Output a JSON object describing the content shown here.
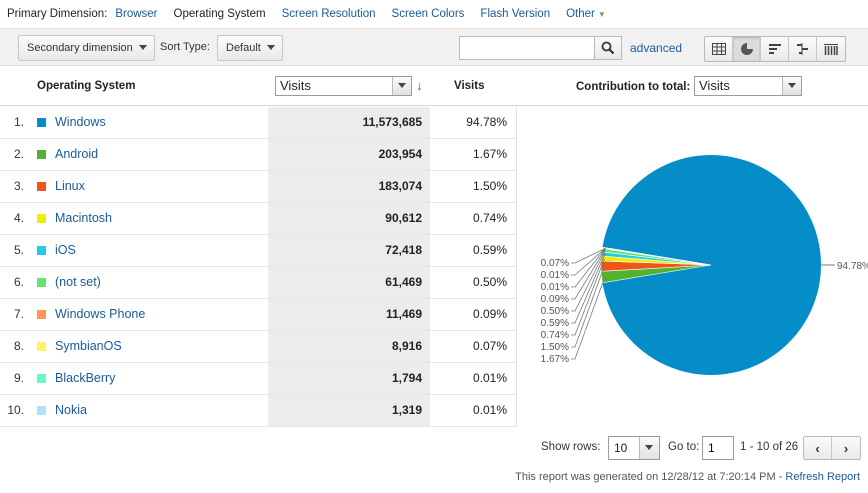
{
  "primary_dimension": {
    "label": "Primary Dimension:",
    "options": [
      "Browser",
      "Operating System",
      "Screen Resolution",
      "Screen Colors",
      "Flash Version",
      "Other"
    ],
    "active": "Operating System"
  },
  "toolbar": {
    "secondary_dimension_label": "Secondary dimension",
    "sort_type_label": "Sort Type:",
    "sort_type_value": "Default",
    "search_value": "",
    "search_icon": "search-icon",
    "advanced_label": "advanced",
    "view_icons": [
      "table-view-icon",
      "pie-view-icon",
      "performance-view-icon",
      "comparison-view-icon",
      "pivot-view-icon"
    ],
    "active_view": "pie-view-icon"
  },
  "table": {
    "dimension_header": "Operating System",
    "metric_select": "Visits",
    "sort_icon": "sort-down-arrow-icon",
    "metric_header": "Visits",
    "contribution_label": "Contribution to total:",
    "contribution_select": "Visits",
    "rows": [
      {
        "index": "1.",
        "name": "Windows",
        "visits": "11,573,685",
        "pct": "94.78%",
        "color": "#058dc7"
      },
      {
        "index": "2.",
        "name": "Android",
        "visits": "203,954",
        "pct": "1.67%",
        "color": "#50b432"
      },
      {
        "index": "3.",
        "name": "Linux",
        "visits": "183,074",
        "pct": "1.50%",
        "color": "#ed561b"
      },
      {
        "index": "4.",
        "name": "Macintosh",
        "visits": "90,612",
        "pct": "0.74%",
        "color": "#edef00"
      },
      {
        "index": "5.",
        "name": "iOS",
        "visits": "72,418",
        "pct": "0.59%",
        "color": "#24cbe5"
      },
      {
        "index": "6.",
        "name": "(not set)",
        "visits": "61,469",
        "pct": "0.50%",
        "color": "#64e572"
      },
      {
        "index": "7.",
        "name": "Windows Phone",
        "visits": "11,469",
        "pct": "0.09%",
        "color": "#ff9655"
      },
      {
        "index": "8.",
        "name": "SymbianOS",
        "visits": "8,916",
        "pct": "0.07%",
        "color": "#fff263"
      },
      {
        "index": "9.",
        "name": "BlackBerry",
        "visits": "1,794",
        "pct": "0.01%",
        "color": "#6af9c4"
      },
      {
        "index": "10.",
        "name": "Nokia",
        "visits": "1,319",
        "pct": "0.01%",
        "color": "#b2deff"
      }
    ]
  },
  "chart_data": {
    "type": "pie",
    "categories": [
      "Windows",
      "Android",
      "Linux",
      "Macintosh",
      "iOS",
      "(not set)",
      "Windows Phone",
      "SymbianOS",
      "BlackBerry",
      "Nokia"
    ],
    "values": [
      94.78,
      1.67,
      1.5,
      0.74,
      0.59,
      0.5,
      0.09,
      0.07,
      0.01,
      0.01
    ],
    "labels": [
      "94.78%",
      "0.07%",
      "0.01%",
      "0.01%",
      "0.09%",
      "0.50%",
      "0.59%",
      "0.74%",
      "1.50%",
      "1.67%"
    ],
    "colors": [
      "#058dc7",
      "#50b432",
      "#ed561b",
      "#edef00",
      "#24cbe5",
      "#64e572",
      "#ff9655",
      "#fff263",
      "#6af9c4",
      "#b2deff"
    ],
    "remainder_color": "#dddddd"
  },
  "pager": {
    "show_rows_label": "Show rows:",
    "rows_value": "10",
    "goto_label": "Go to:",
    "goto_value": "1",
    "range": "1 - 10 of 26",
    "prev_icon": "chevron-left-icon",
    "next_icon": "chevron-right-icon"
  },
  "footer": {
    "text": "This report was generated on 12/28/12 at 7:20:14 PM - ",
    "refresh_label": "Refresh Report"
  }
}
